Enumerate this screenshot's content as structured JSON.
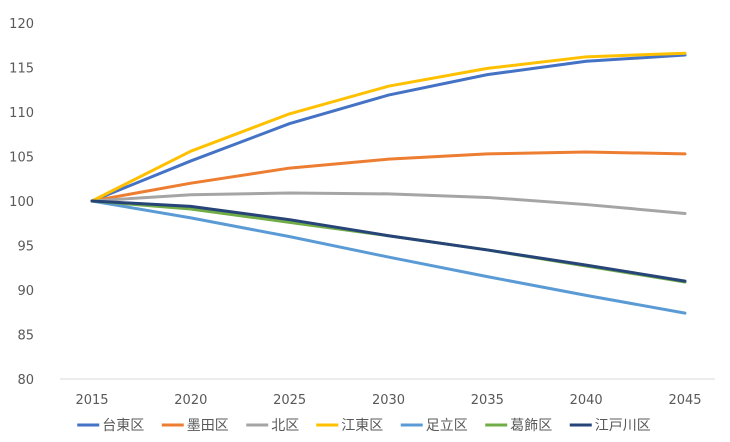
{
  "chart_data": {
    "type": "line",
    "x": [
      2015,
      2020,
      2025,
      2030,
      2035,
      2040,
      2045
    ],
    "ylim": [
      80,
      120
    ],
    "yticks": [
      80,
      85,
      90,
      95,
      100,
      105,
      110,
      115,
      120
    ],
    "grid": false,
    "legend_position": "bottom",
    "series": [
      {
        "name": "台東区",
        "color": "#4472C4",
        "values": [
          100,
          104.5,
          108.7,
          111.9,
          114.2,
          115.7,
          116.4
        ]
      },
      {
        "name": "墨田区",
        "color": "#ED7D31",
        "values": [
          100,
          102.0,
          103.7,
          104.7,
          105.3,
          105.5,
          105.3
        ]
      },
      {
        "name": "北区",
        "color": "#A5A5A5",
        "values": [
          100,
          100.7,
          100.9,
          100.8,
          100.4,
          99.6,
          98.6
        ]
      },
      {
        "name": "江東区",
        "color": "#FFC000",
        "values": [
          100,
          105.6,
          109.8,
          112.9,
          114.9,
          116.2,
          116.6
        ]
      },
      {
        "name": "足立区",
        "color": "#5B9BD5",
        "values": [
          100,
          98.1,
          96.0,
          93.7,
          91.5,
          89.4,
          87.4
        ]
      },
      {
        "name": "葛飾区",
        "color": "#70AD47",
        "values": [
          100,
          99.1,
          97.6,
          96.1,
          94.5,
          92.7,
          90.9
        ]
      },
      {
        "name": "江戸川区",
        "color": "#264478",
        "values": [
          100,
          99.4,
          97.9,
          96.1,
          94.5,
          92.8,
          91.0
        ]
      }
    ]
  }
}
